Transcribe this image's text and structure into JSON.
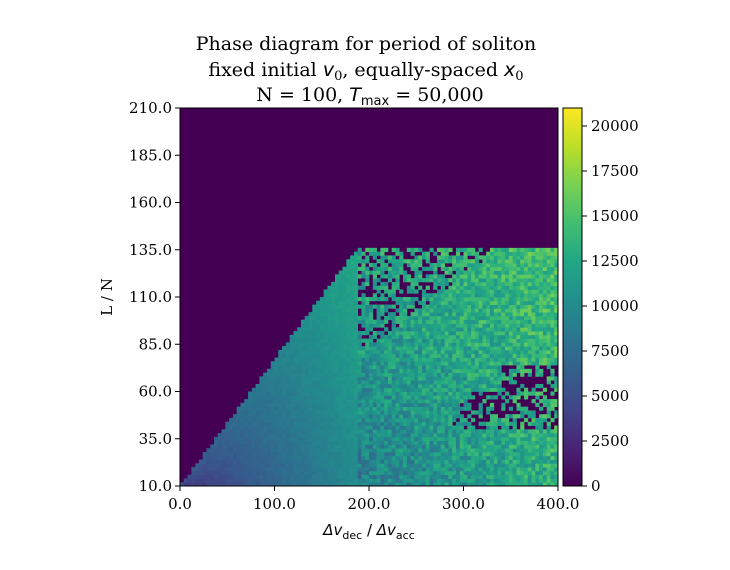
{
  "chart_data": {
    "type": "heatmap",
    "title_lines": [
      "Phase diagram for period of soliton",
      "fixed initial v₀, equally-spaced x₀",
      "N = 100, Tₘₐₓ = 50,000"
    ],
    "title_parts": {
      "line2_a": "fixed initial ",
      "line2_v": "v",
      "line2_v_sub": "0",
      "line2_b": ", equally-spaced ",
      "line2_x": "x",
      "line2_x_sub": "0",
      "line3_a": "N = 100, ",
      "line3_T": "T",
      "line3_T_sub": "max",
      "line3_b": " = 50,000"
    },
    "xlabel_parts": {
      "a": "Δv",
      "a_sub": "dec",
      "slash": " / ",
      "b": "Δv",
      "b_sub": "acc"
    },
    "ylabel": "L / N",
    "x_ticks": [
      "0.0",
      "100.0",
      "200.0",
      "300.0",
      "400.0"
    ],
    "y_ticks": [
      "10.0",
      "35.0",
      "60.0",
      "85.0",
      "110.0",
      "135.0",
      "160.0",
      "185.0",
      "210.0"
    ],
    "xlim": [
      0,
      400
    ],
    "ylim": [
      10,
      210
    ],
    "colorbar": {
      "colormap": "viridis",
      "range": [
        0,
        21000
      ],
      "ticks": [
        "0",
        "2500",
        "5000",
        "7500",
        "10000",
        "12500",
        "15000",
        "17500",
        "20000"
      ]
    },
    "description_regions": [
      {
        "region": "above diagonal boundary (L/N > ~ 0.67 * dv_ratio + 10)",
        "value": 0
      },
      {
        "region": "smooth wedge near boundary",
        "value_range": [
          3000,
          12000
        ]
      },
      {
        "region": "scattered noisy region, x > ~190",
        "value_range": [
          10000,
          19000
        ]
      },
      {
        "region": "bottom row L/N = 10",
        "value": 0
      }
    ]
  }
}
